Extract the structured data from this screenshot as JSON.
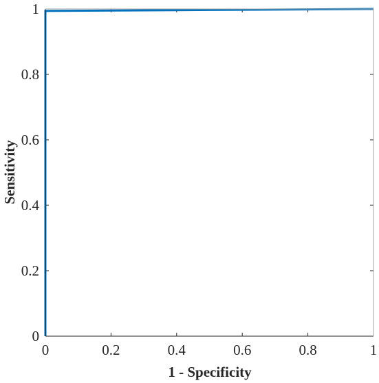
{
  "chart_data": {
    "type": "line",
    "title": "",
    "xlabel": "1 - Specificity",
    "ylabel": "Sensitivity",
    "xlim": [
      0,
      1
    ],
    "ylim": [
      0,
      1
    ],
    "grid": false,
    "legend": "none",
    "x_ticks": [
      "0",
      "0.2",
      "0.4",
      "0.6",
      "0.8",
      "1"
    ],
    "y_ticks": [
      "0",
      "0.2",
      "0.4",
      "0.6",
      "0.8",
      "1"
    ],
    "series": [
      {
        "color": "#0072BD",
        "x": [
          0,
          0,
          0.5,
          1
        ],
        "y": [
          0,
          0.994,
          0.997,
          1
        ]
      }
    ]
  },
  "colors": {
    "axis": "#262626",
    "box": "#a6a6a6",
    "series": "#0072BD"
  }
}
